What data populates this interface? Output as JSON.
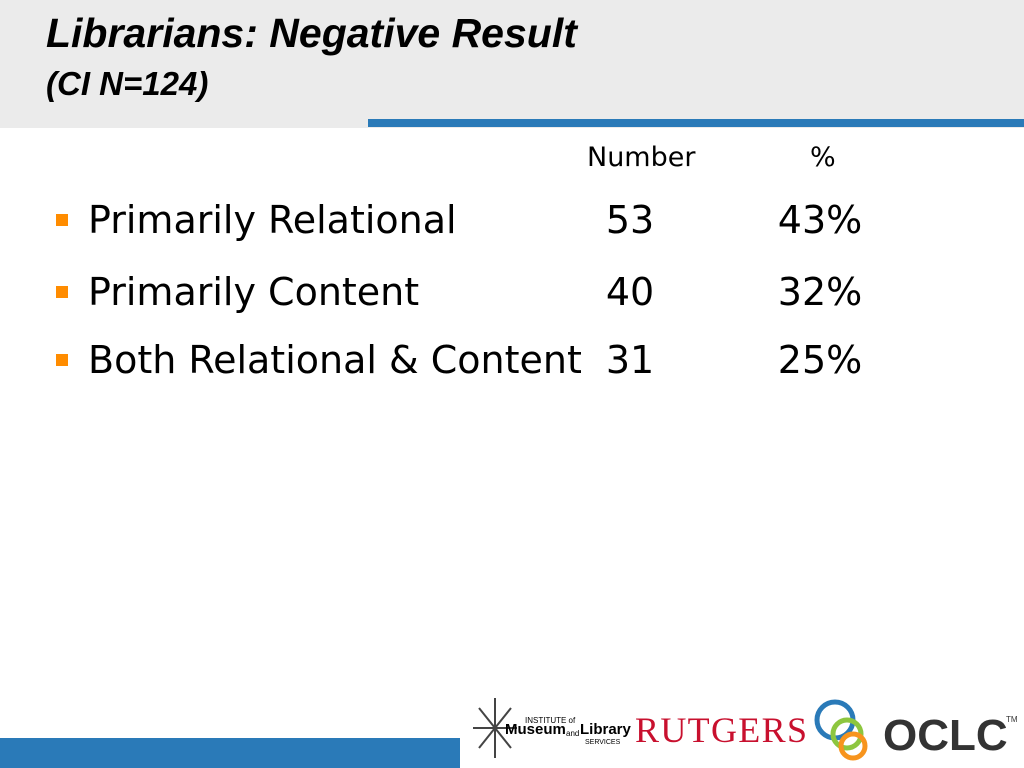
{
  "header": {
    "title": "Librarians: Negative Result",
    "subtitle": "(CI N=124)"
  },
  "table": {
    "columns": [
      "Number",
      "%"
    ],
    "rows": [
      [
        "Primarily Relational",
        "53",
        "43%"
      ],
      [
        "Primarily Content",
        "40",
        "32%"
      ],
      [
        "Both Relational & Content",
        "31",
        "25%"
      ]
    ]
  },
  "footer": {
    "logos": {
      "imls_top": "INSTITUTE of",
      "imls_main": "Museum",
      "imls_and": "and",
      "imls_library": "Library",
      "imls_bottom": "SERVICES",
      "rutgers": "RUTGERS",
      "oclc": "OCLC",
      "tm": "TM"
    }
  }
}
